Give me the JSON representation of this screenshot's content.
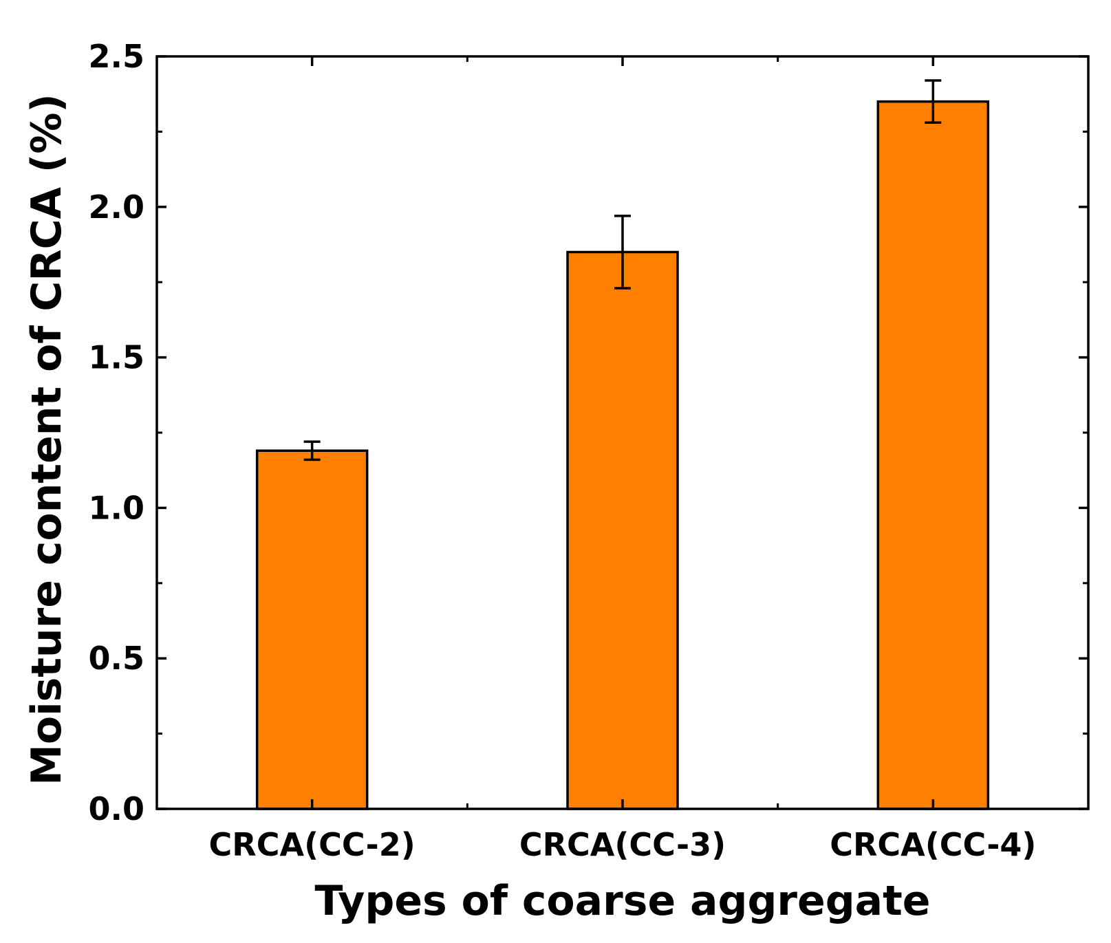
{
  "chart_data": {
    "type": "bar",
    "title": "",
    "xlabel": "Types of coarse aggregate",
    "ylabel": "Moisture content of CRCA (%)",
    "categories": [
      "CRCA(CC-2)",
      "CRCA(CC-3)",
      "CRCA(CC-4)"
    ],
    "values": [
      1.19,
      1.85,
      2.35
    ],
    "errors": [
      0.03,
      0.12,
      0.07
    ],
    "ylim": [
      0,
      2.5
    ],
    "yticks": [
      "0.0",
      "0.5",
      "1.0",
      "1.5",
      "2.0",
      "2.5"
    ],
    "grid": false,
    "bar_color": "#ff8000",
    "edge_color": "#000000"
  }
}
